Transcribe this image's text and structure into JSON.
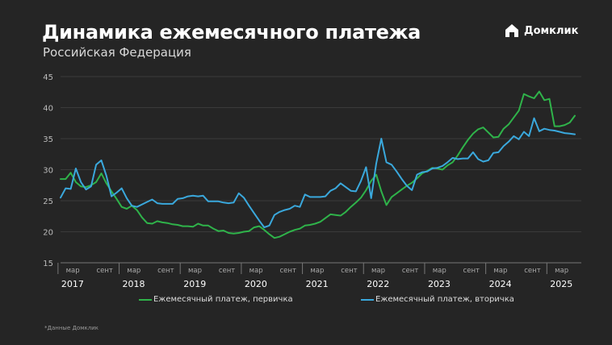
{
  "header": {
    "title": "Динамика ежемесячного платежа",
    "subtitle": "Российская Федерация",
    "logo_text": "Домклик"
  },
  "footnote": "*Данные Домклик",
  "colors": {
    "background": "#252525",
    "primary": "#2fb34a",
    "secondary": "#3aa8dc",
    "grid": "#3a3a3a"
  },
  "chart_data": {
    "type": "line",
    "title": "Динамика ежемесячного платежа",
    "subtitle": "Российская Федерация",
    "ylim": [
      15,
      45
    ],
    "yticks": [
      15,
      20,
      25,
      30,
      35,
      40,
      45
    ],
    "grid": true,
    "legend": "bottom",
    "x_start": "2017-01",
    "x_end": "2025-06",
    "x_frequency": "monthly",
    "month_tick_labels": [
      "мар",
      "сент"
    ],
    "years": [
      "2017",
      "2018",
      "2019",
      "2020",
      "2021",
      "2022",
      "2023",
      "2024",
      "2025"
    ],
    "series": [
      {
        "name": "Ежемесячный платеж, первичка",
        "color": "#2fb34a",
        "values": [
          28.5,
          28.5,
          29.5,
          28.0,
          27.3,
          27.2,
          27.5,
          28.0,
          29.4,
          27.8,
          26.5,
          25.3,
          24.0,
          23.7,
          24.2,
          23.5,
          22.3,
          21.4,
          21.3,
          21.7,
          21.5,
          21.4,
          21.2,
          21.1,
          20.9,
          20.9,
          20.8,
          21.3,
          21.0,
          21.0,
          20.5,
          20.1,
          20.2,
          19.8,
          19.7,
          19.8,
          20.0,
          20.1,
          20.7,
          20.9,
          20.3,
          19.6,
          19.0,
          19.2,
          19.6,
          20.0,
          20.3,
          20.5,
          21.0,
          21.1,
          21.3,
          21.6,
          22.2,
          22.8,
          22.7,
          22.6,
          23.2,
          24.0,
          24.7,
          25.5,
          26.7,
          28.2,
          29.2,
          26.5,
          24.3,
          25.6,
          26.2,
          26.8,
          27.4,
          27.9,
          28.6,
          29.4,
          29.8,
          30.3,
          30.2,
          30.0,
          30.7,
          31.2,
          32.3,
          33.6,
          34.8,
          35.8,
          36.5,
          36.8,
          36.0,
          35.2,
          35.3,
          36.6,
          37.3,
          38.4,
          39.5,
          42.2,
          41.8,
          41.5,
          42.6,
          41.2,
          41.4,
          37.0,
          37.0,
          37.2,
          37.6,
          38.7
        ]
      },
      {
        "name": "Ежемесячный платеж, вторичка",
        "color": "#3aa8dc",
        "values": [
          25.5,
          27.0,
          26.9,
          30.2,
          28.0,
          26.8,
          27.3,
          30.8,
          31.5,
          29.0,
          25.7,
          26.3,
          27.0,
          25.4,
          24.2,
          24.0,
          24.4,
          24.8,
          25.2,
          24.6,
          24.5,
          24.5,
          24.5,
          25.3,
          25.4,
          25.7,
          25.8,
          25.7,
          25.8,
          24.9,
          24.9,
          24.9,
          24.7,
          24.6,
          24.7,
          26.2,
          25.5,
          24.2,
          23.0,
          21.8,
          20.7,
          21.0,
          22.7,
          23.2,
          23.5,
          23.7,
          24.2,
          24.0,
          26.0,
          25.6,
          25.6,
          25.6,
          25.7,
          26.6,
          27.0,
          27.8,
          27.2,
          26.6,
          26.5,
          28.2,
          30.4,
          25.4,
          31.0,
          35.0,
          31.2,
          30.8,
          29.7,
          28.5,
          27.4,
          26.7,
          29.2,
          29.6,
          29.7,
          30.2,
          30.3,
          30.6,
          31.2,
          31.9,
          31.7,
          31.8,
          31.8,
          32.8,
          31.7,
          31.3,
          31.5,
          32.7,
          32.8,
          33.8,
          34.5,
          35.4,
          34.9,
          36.1,
          35.4,
          38.3,
          36.2,
          36.6,
          36.4,
          36.3,
          36.1,
          35.9,
          35.8,
          35.7
        ]
      }
    ]
  }
}
